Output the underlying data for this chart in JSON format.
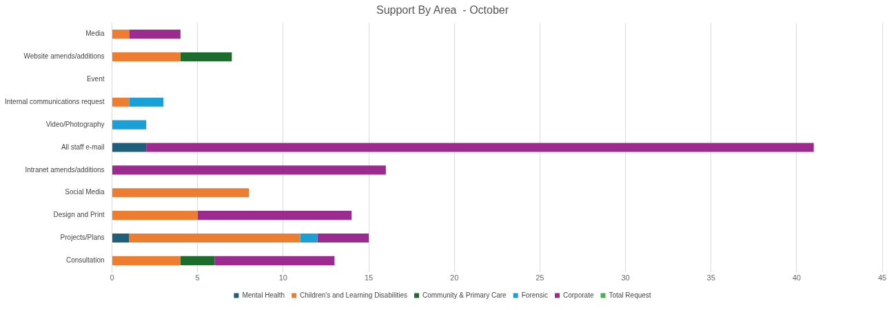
{
  "chart_data": {
    "type": "bar",
    "orientation": "horizontal",
    "stacked": true,
    "title": "Support By Area  - October",
    "categories": [
      "Media",
      "Website amends/additions",
      "Event",
      "Internal communications request",
      "Video/Photography",
      "All staff e-mail",
      "Intranet amends/additions",
      "Social Media",
      "Design and Print",
      "Projects/Plans",
      "Consultation"
    ],
    "series": [
      {
        "name": "Mental Health",
        "color": "#1f5f7a",
        "values": [
          null,
          null,
          null,
          null,
          null,
          2,
          null,
          null,
          null,
          1,
          null
        ]
      },
      {
        "name": "Children's and Learning Disabilities",
        "color": "#ed7d31",
        "values": [
          1,
          4,
          null,
          1,
          null,
          null,
          null,
          8,
          5,
          10,
          4
        ]
      },
      {
        "name": "Community & Primary Care",
        "color": "#1e6b2e",
        "values": [
          null,
          3,
          null,
          null,
          null,
          null,
          null,
          null,
          null,
          null,
          2
        ]
      },
      {
        "name": "Forensic",
        "color": "#1a9fd6",
        "values": [
          null,
          null,
          null,
          2,
          2,
          null,
          null,
          null,
          null,
          1,
          null
        ]
      },
      {
        "name": "Corporate",
        "color": "#9b2b8f",
        "values": [
          3,
          null,
          null,
          null,
          null,
          39,
          16,
          null,
          9,
          3,
          7
        ]
      },
      {
        "name": "Total Request",
        "color": "#4caf50",
        "values": [
          null,
          null,
          null,
          null,
          null,
          null,
          null,
          null,
          null,
          null,
          null
        ]
      }
    ],
    "xlim": [
      0,
      45
    ],
    "xticks": [
      0,
      5,
      10,
      15,
      20,
      25,
      30,
      35,
      40,
      45
    ],
    "grid": "x",
    "legend": "bottom"
  }
}
